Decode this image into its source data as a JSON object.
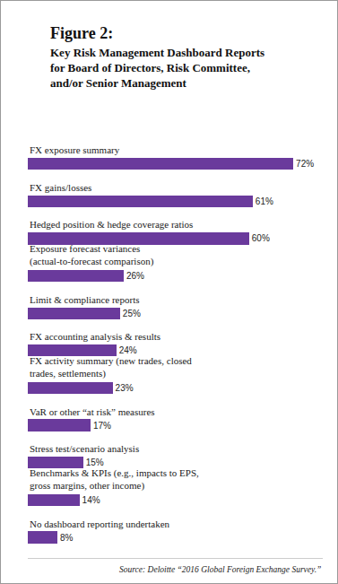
{
  "chart_data": {
    "type": "bar",
    "title": "Figure 2:",
    "subtitle": "Key Risk Management Dashboard Reports for Board of Directors, Risk Committee, and/or Senior Management",
    "categories": [
      "FX exposure summary",
      "FX gains/losses",
      "Hedged position & hedge coverage ratios",
      "Exposure forecast variances (actual-to-forecast comparison)",
      "Limit & compliance reports",
      "FX accounting analysis & results",
      "FX activity summary (new trades, closed trades, settlements)",
      "VaR or other “at risk” measures",
      "Stress test/scenario analysis",
      "Benchmarks & KPIs (e.g., impacts to EPS, gross margins, other income)",
      "No dashboard reporting undertaken"
    ],
    "values": [
      72,
      61,
      60,
      26,
      25,
      24,
      23,
      17,
      15,
      14,
      8
    ],
    "value_labels": [
      "72%",
      "61%",
      "60%",
      "26%",
      "25%",
      "24%",
      "23%",
      "17%",
      "15%",
      "14%",
      "8%"
    ],
    "orientation": "horizontal",
    "data_labels": true,
    "color": "#6a3a9c",
    "xlim": [
      0,
      80
    ],
    "tick_labels": false,
    "annotations": [
      "Source: Deloitte “2016 Global Foreign Exchange Survey.”"
    ]
  }
}
